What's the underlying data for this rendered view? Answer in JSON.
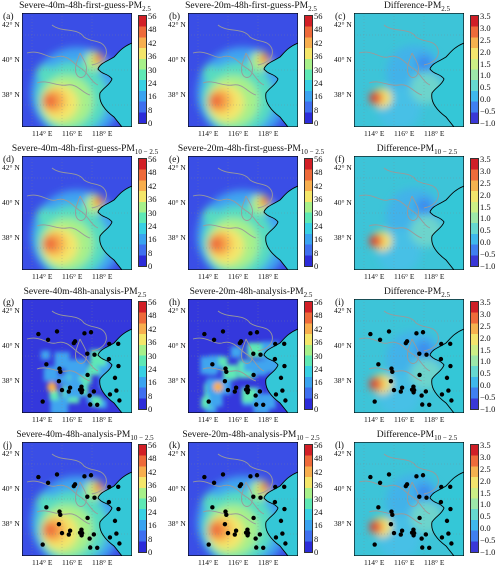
{
  "panels": [
    {
      "letter": "(a)",
      "title": "Severe-40m-48h-first-guess-PM",
      "sub": "2.5",
      "kind": "conc",
      "dots": 0
    },
    {
      "letter": "(b)",
      "title": "Severe-20m-48h-first-guess-PM",
      "sub": "2.5",
      "kind": "conc",
      "dots": 0
    },
    {
      "letter": "(c)",
      "title": "Difference-PM",
      "sub": "2.5",
      "kind": "diff",
      "dots": 0
    },
    {
      "letter": "(d)",
      "title": "Severe-40m-48h-first-guess-PM",
      "sub": "10 − 2.5",
      "kind": "conc",
      "dots": 0
    },
    {
      "letter": "(e)",
      "title": "Severe-20m-48h-first-guess-PM",
      "sub": "10 − 2.5",
      "kind": "conc",
      "dots": 0
    },
    {
      "letter": "(f)",
      "title": "Difference-PM",
      "sub": "10 − 2.5",
      "kind": "diff",
      "dots": 0
    },
    {
      "letter": "(g)",
      "title": "Severe-40m-48h-analysis-PM",
      "sub": "2.5",
      "kind": "analysis",
      "dots": 1
    },
    {
      "letter": "(h)",
      "title": "Severe-20m-48h-analysis-PM",
      "sub": "2.5",
      "kind": "analysis",
      "dots": 1
    },
    {
      "letter": "(i)",
      "title": "Difference-PM",
      "sub": "2.5",
      "kind": "diff",
      "dots": 1
    },
    {
      "letter": "(j)",
      "title": "Severe-40m-48h-analysis-PM",
      "sub": "10 − 2.5",
      "kind": "conc",
      "dots": 1
    },
    {
      "letter": "(k)",
      "title": "Severe-20m-48h-analysis-PM",
      "sub": "10 − 2.5",
      "kind": "conc",
      "dots": 1
    },
    {
      "letter": "(l)",
      "title": "Difference-PM",
      "sub": "10 − 2.5",
      "kind": "diff",
      "dots": 1
    }
  ],
  "conc_ticks": [
    "56",
    "48",
    "42",
    "36",
    "30",
    "24",
    "16",
    "8",
    "0"
  ],
  "diff_ticks": [
    "3.5",
    "3.0",
    "2.5",
    "2.0",
    "1.5",
    "1.0",
    "0.5",
    "0.0",
    "−0.5",
    "−1.0"
  ],
  "lat_labels": [
    "42° N",
    "40° N",
    "38° N"
  ],
  "lon_labels": [
    "114° E",
    "116° E",
    "118° E"
  ],
  "colors": {
    "conc_scale": [
      "#2c2cd9",
      "#3f6fef",
      "#3aa3f0",
      "#38d0e3",
      "#5ee8b5",
      "#a7f08a",
      "#f4e66a",
      "#f7ae4e",
      "#ee6a3a",
      "#d21f26"
    ],
    "diff_scale": [
      "#3a38d7",
      "#3f7ff0",
      "#3fb8ec",
      "#66d8d0",
      "#9de7a9",
      "#cdee86",
      "#f3e56d",
      "#f5b24f",
      "#ee6b3a",
      "#cf1f27"
    ],
    "sea": "#34c7d7",
    "border": "#9a9a9a",
    "coast": "#000000"
  }
}
